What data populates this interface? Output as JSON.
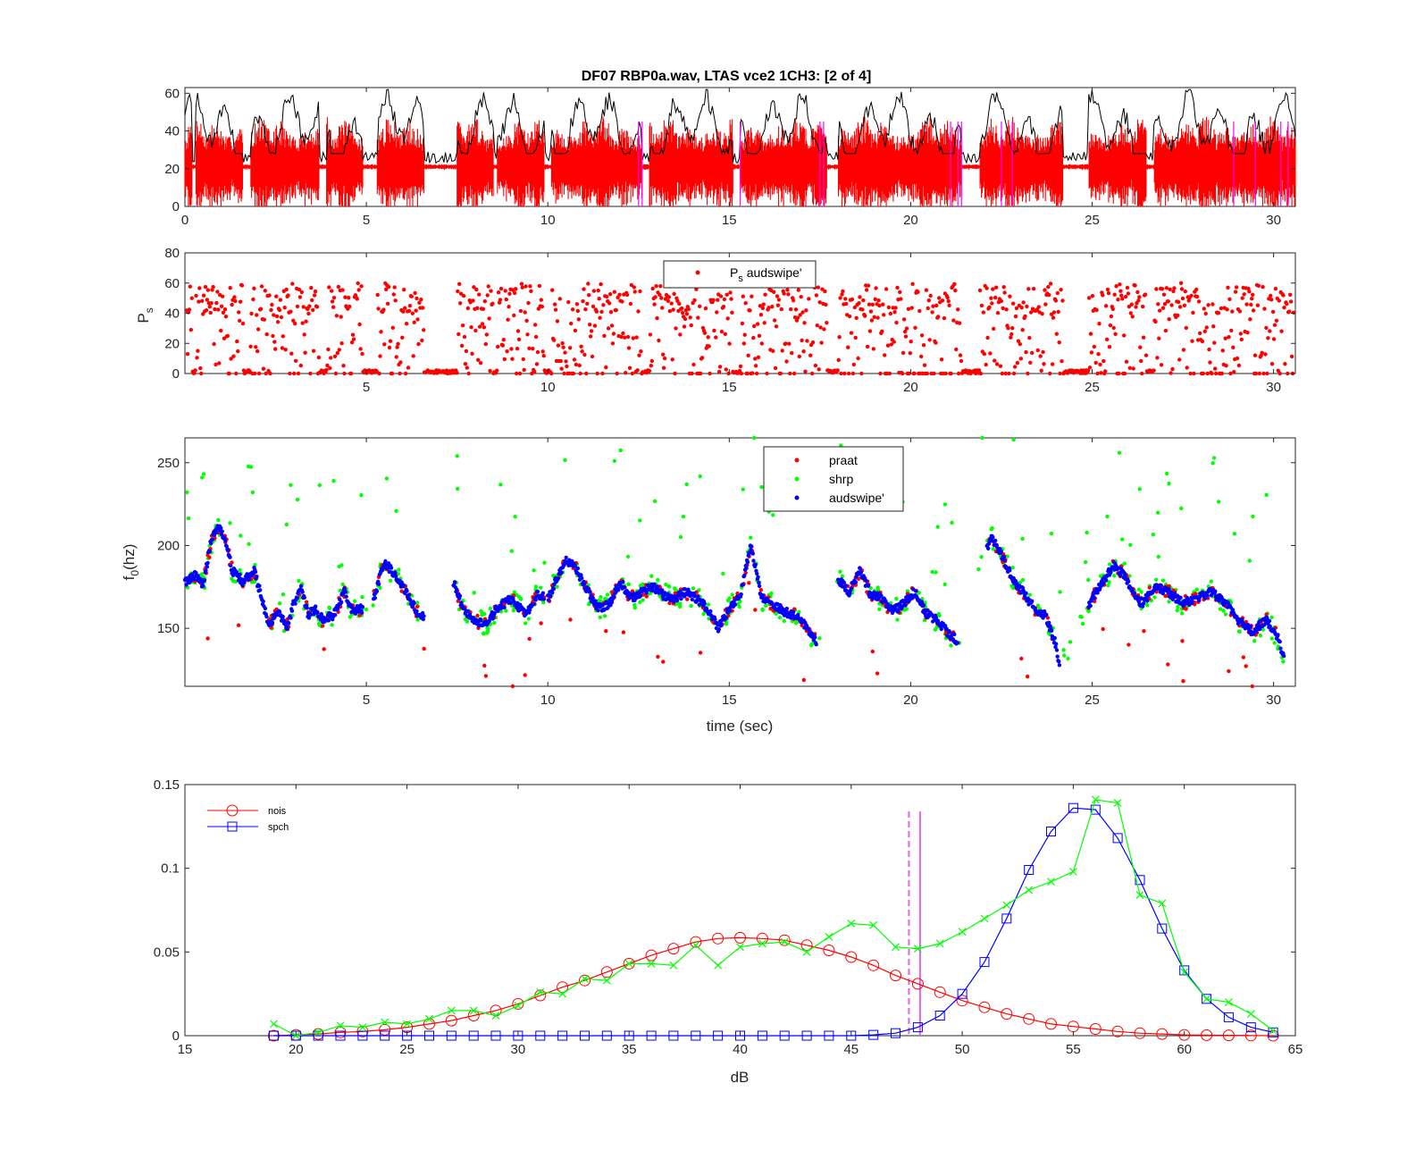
{
  "title": "DF07 RBP0a.wav,  LTAS vce2 1CH3: [2 of 4]",
  "colors": {
    "red": "#ff0000",
    "black": "#000000",
    "magenta": "#ff00ff",
    "green": "#00ff00",
    "blue": "#0000ff",
    "magenta_dash": "#e066e0"
  },
  "chart_data": [
    {
      "type": "line",
      "xlim": [
        0,
        30.6
      ],
      "ylim": [
        0,
        63
      ],
      "xticks": [
        "0",
        "5",
        "10",
        "15",
        "20",
        "25",
        "30"
      ],
      "yticks": [
        "0",
        "20",
        "40",
        "60"
      ],
      "series_note_colors": [
        "black",
        "red",
        "magenta"
      ],
      "speech_segments": [
        [
          0.0,
          0.2
        ],
        [
          0.3,
          1.6
        ],
        [
          1.8,
          3.7
        ],
        [
          3.9,
          4.9
        ],
        [
          5.3,
          6.6
        ],
        [
          7.5,
          8.5
        ],
        [
          8.6,
          9.9
        ],
        [
          10.1,
          12.6
        ],
        [
          12.8,
          15.1
        ],
        [
          15.3,
          17.7
        ],
        [
          18.0,
          21.4
        ],
        [
          21.9,
          24.2
        ],
        [
          24.9,
          26.5
        ],
        [
          26.7,
          30.6
        ]
      ],
      "magenta_markers": [
        12.5,
        12.6,
        15.3,
        17.5,
        17.6,
        21.1,
        21.3,
        21.4,
        22.5,
        22.8,
        28.9,
        29.5,
        30.2,
        30.4
      ]
    },
    {
      "type": "scatter",
      "ylabel": "Ps",
      "xlim": [
        0,
        30.6
      ],
      "ylim": [
        0,
        80
      ],
      "xticks": [
        "5",
        "10",
        "15",
        "20",
        "25",
        "30"
      ],
      "yticks": [
        "0",
        "20",
        "40",
        "60",
        "80"
      ],
      "series": [
        {
          "name": "P_s audswipe'",
          "color": "red"
        }
      ]
    },
    {
      "type": "scatter",
      "xlabel": "time (sec)",
      "ylabel": "f0(hz)",
      "xlim": [
        0,
        30.6
      ],
      "ylim": [
        115,
        265
      ],
      "xticks": [
        "5",
        "10",
        "15",
        "20",
        "25",
        "30"
      ],
      "yticks": [
        "150",
        "200",
        "250"
      ],
      "series": [
        {
          "name": "praat",
          "color": "red"
        },
        {
          "name": "shrp",
          "color": "green"
        },
        {
          "name": "audswipe'",
          "color": "blue"
        }
      ],
      "contour": [
        [
          0.0,
          178
        ],
        [
          0.3,
          182
        ],
        [
          0.5,
          176
        ],
        [
          0.7,
          200
        ],
        [
          0.9,
          212
        ],
        [
          1.1,
          205
        ],
        [
          1.3,
          185
        ],
        [
          1.6,
          178
        ],
        [
          1.9,
          185
        ],
        [
          2.1,
          170
        ],
        [
          2.3,
          152
        ],
        [
          2.6,
          160
        ],
        [
          2.8,
          150
        ],
        [
          3.0,
          165
        ],
        [
          3.2,
          175
        ],
        [
          3.4,
          158
        ],
        [
          3.6,
          162
        ],
        [
          3.8,
          155
        ],
        [
          4.1,
          158
        ],
        [
          4.4,
          172
        ],
        [
          4.6,
          160
        ],
        [
          4.9,
          162
        ],
        [
          5.2,
          168
        ],
        [
          5.5,
          190
        ],
        [
          5.8,
          182
        ],
        [
          6.1,
          172
        ],
        [
          6.4,
          160
        ],
        [
          6.7,
          155
        ],
        [
          7.0,
          165
        ],
        [
          7.4,
          178
        ],
        [
          7.7,
          160
        ],
        [
          8.0,
          155
        ],
        [
          8.3,
          152
        ],
        [
          8.6,
          162
        ],
        [
          9.0,
          168
        ],
        [
          9.4,
          158
        ],
        [
          9.7,
          170
        ],
        [
          10.0,
          168
        ],
        [
          10.3,
          182
        ],
        [
          10.5,
          192
        ],
        [
          10.8,
          185
        ],
        [
          11.1,
          172
        ],
        [
          11.4,
          162
        ],
        [
          11.7,
          165
        ],
        [
          12.0,
          178
        ],
        [
          12.3,
          168
        ],
        [
          12.6,
          172
        ],
        [
          12.9,
          175
        ],
        [
          13.2,
          170
        ],
        [
          13.5,
          168
        ],
        [
          13.8,
          172
        ],
        [
          14.1,
          168
        ],
        [
          14.4,
          162
        ],
        [
          14.7,
          150
        ],
        [
          15.0,
          162
        ],
        [
          15.3,
          170
        ],
        [
          15.6,
          200
        ],
        [
          15.9,
          168
        ],
        [
          16.2,
          165
        ],
        [
          16.5,
          160
        ],
        [
          16.8,
          158
        ],
        [
          17.1,
          152
        ],
        [
          17.4,
          142
        ],
        [
          18.0,
          180
        ],
        [
          18.3,
          172
        ],
        [
          18.6,
          185
        ],
        [
          18.9,
          170
        ],
        [
          19.2,
          168
        ],
        [
          19.5,
          160
        ],
        [
          19.8,
          165
        ],
        [
          20.1,
          172
        ],
        [
          20.4,
          160
        ],
        [
          20.7,
          155
        ],
        [
          21.0,
          148
        ],
        [
          21.3,
          142
        ],
        [
          22.2,
          205
        ],
        [
          22.5,
          195
        ],
        [
          22.8,
          180
        ],
        [
          23.1,
          172
        ],
        [
          23.4,
          162
        ],
        [
          23.7,
          158
        ],
        [
          24.0,
          140
        ],
        [
          24.1,
          128
        ],
        [
          25.0,
          168
        ],
        [
          25.3,
          178
        ],
        [
          25.6,
          188
        ],
        [
          25.9,
          182
        ],
        [
          26.2,
          168
        ],
        [
          26.4,
          165
        ],
        [
          26.7,
          175
        ],
        [
          27.1,
          172
        ],
        [
          27.5,
          165
        ],
        [
          27.9,
          168
        ],
        [
          28.3,
          172
        ],
        [
          28.7,
          165
        ],
        [
          29.0,
          155
        ],
        [
          29.4,
          148
        ],
        [
          29.8,
          155
        ],
        [
          30.1,
          145
        ],
        [
          30.3,
          132
        ]
      ]
    },
    {
      "type": "line",
      "xlabel": "dB",
      "xlim": [
        15,
        65
      ],
      "ylim": [
        0,
        0.15
      ],
      "xticks": [
        "15",
        "20",
        "25",
        "30",
        "35",
        "40",
        "45",
        "50",
        "55",
        "60",
        "65"
      ],
      "yticks": [
        "0",
        "0.05",
        "0.1",
        "0.15"
      ],
      "x": [
        19,
        20,
        21,
        22,
        23,
        24,
        25,
        26,
        27,
        28,
        29,
        30,
        31,
        32,
        33,
        34,
        35,
        36,
        37,
        38,
        39,
        40,
        41,
        42,
        43,
        44,
        45,
        46,
        47,
        48,
        49,
        50,
        51,
        52,
        53,
        54,
        55,
        56,
        57,
        58,
        59,
        60,
        61,
        62,
        63,
        64
      ],
      "series": [
        {
          "name": "nois",
          "color": "red",
          "marker": "o",
          "values": [
            0.0,
            0.0005,
            0.001,
            0.002,
            0.0025,
            0.0035,
            0.005,
            0.007,
            0.009,
            0.012,
            0.015,
            0.019,
            0.024,
            0.029,
            0.033,
            0.038,
            0.043,
            0.048,
            0.052,
            0.056,
            0.058,
            0.0585,
            0.058,
            0.057,
            0.054,
            0.051,
            0.047,
            0.042,
            0.036,
            0.031,
            0.026,
            0.021,
            0.017,
            0.013,
            0.01,
            0.007,
            0.0055,
            0.004,
            0.0025,
            0.0015,
            0.001,
            0.0005,
            0.0003,
            0.0002,
            0.0001,
            0.0
          ]
        },
        {
          "name": "spch",
          "color": "blue",
          "marker": "square",
          "values": [
            0,
            0,
            0,
            0,
            0,
            0,
            0,
            0,
            0,
            0,
            0,
            0,
            0,
            0,
            0,
            0,
            0,
            0,
            0,
            0,
            0,
            0,
            0,
            0,
            0,
            0,
            0,
            0.0005,
            0.0015,
            0.005,
            0.012,
            0.025,
            0.044,
            0.07,
            0.099,
            0.122,
            0.136,
            0.135,
            0.118,
            0.093,
            0.064,
            0.039,
            0.022,
            0.011,
            0.005,
            0.002
          ]
        },
        {
          "name": "",
          "color": "green",
          "marker": "x",
          "values": [
            0.007,
            0.0,
            0.002,
            0.006,
            0.005,
            0.008,
            0.007,
            0.01,
            0.015,
            0.015,
            0.012,
            0.018,
            0.026,
            0.025,
            0.034,
            0.033,
            0.043,
            0.043,
            0.042,
            0.054,
            0.042,
            0.053,
            0.055,
            0.056,
            0.05,
            0.059,
            0.067,
            0.066,
            0.053,
            0.052,
            0.055,
            0.062,
            0.07,
            0.078,
            0.087,
            0.092,
            0.098,
            0.141,
            0.139,
            0.084,
            0.079,
            0.038,
            0.022,
            0.02,
            0.013,
            0.003
          ]
        }
      ],
      "vlines": [
        {
          "x": 47.6,
          "style": "dashed",
          "color": "magenta"
        },
        {
          "x": 48.1,
          "style": "solid",
          "color": "magenta"
        }
      ]
    }
  ]
}
